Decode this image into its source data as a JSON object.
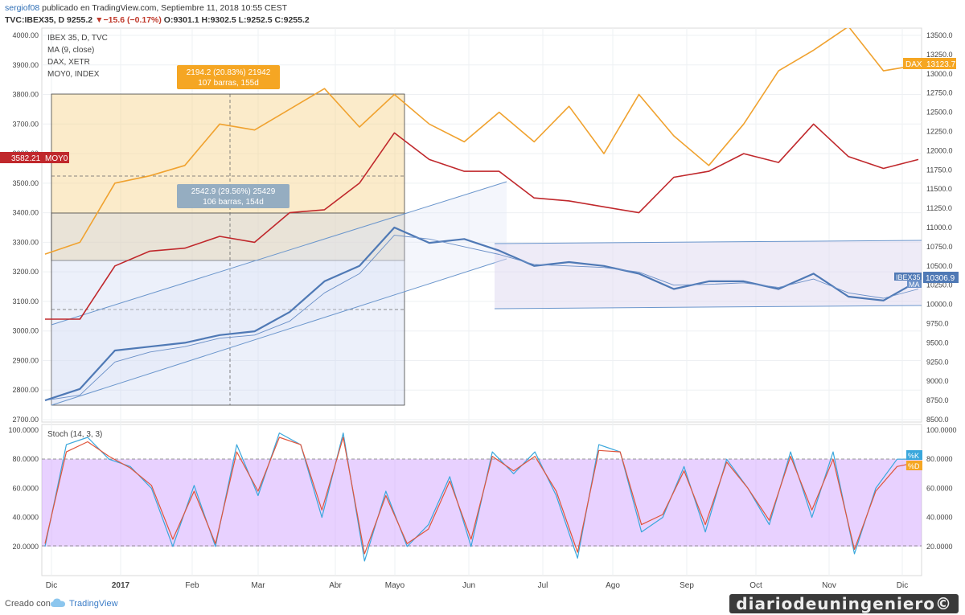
{
  "header": {
    "user": "sergiof08",
    "published": " publicado en TradingView.com, Septiembre 11, 2018 10:55 CEST",
    "symbol": "TVC:IBEX35, D",
    "last": "9255.2",
    "arrow": "▼",
    "change": "−15.6 (−0.17%)",
    "ohlc": "O:9301.1 H:9302.5 L:9252.5 C:9255.2"
  },
  "legend": [
    "IBEX 35, D, TVC",
    "MA (9, close)",
    "DAX, XETR",
    "MOY0, INDEX"
  ],
  "colors": {
    "ibex": "#4f79b5",
    "ma": "#6a8fc7",
    "dax": "#f0a22f",
    "moy": "#c0282c",
    "k": "#3aa7dc",
    "d": "#e0553c",
    "band": "#cc99ff"
  },
  "measure_boxes": [
    {
      "label1": "2194.2 (20.83%) 21942",
      "label2": "107 barras, 155d"
    },
    {
      "label1": "2542.9 (29.56%) 25429",
      "label2": "106 barras, 154d"
    }
  ],
  "price_badges": {
    "moy": "3582.21",
    "moy_tag": "MOY0",
    "dax_tag": "DAX",
    "dax": "13123.7",
    "ibex_tag": "IBEX35",
    "ma_tag": "MA",
    "ibex": "10306.9",
    "k_tag": "%K",
    "d_tag": "%D"
  },
  "stoch_label": "Stoch (14, 3, 3)",
  "chart_data": [
    {
      "type": "line",
      "x_labels": [
        "Dic",
        "2017",
        "Feb",
        "Mar",
        "Abr",
        "Mayo",
        "Jun",
        "Jul",
        "Ago",
        "Sep",
        "Oct",
        "Nov",
        "Dic"
      ],
      "left_axis": {
        "ticks": [
          "4000.00",
          "3900.00",
          "3800.00",
          "3700.00",
          "3600.00",
          "3500.00",
          "3400.00",
          "3300.00",
          "3200.00",
          "3100.00",
          "3000.00",
          "2900.00",
          "2800.00",
          "2700.00"
        ],
        "range": [
          2700,
          4000
        ]
      },
      "right_axis": {
        "ticks": [
          "13500.0",
          "13250.0",
          "13000.0",
          "12750.0",
          "12500.0",
          "12250.0",
          "12000.0",
          "11750.0",
          "11500.0",
          "11250.0",
          "11000.0",
          "10750.0",
          "10500.0",
          "10250.0",
          "10000.0",
          "9750.0",
          "9500.0",
          "9250.0",
          "9000.0",
          "8750.0",
          "8500.0"
        ],
        "range": [
          8500,
          13500
        ]
      },
      "series": [
        {
          "name": "DAX, XETR",
          "axis": "left",
          "values": [
            3260,
            3300,
            3500,
            3525,
            3560,
            3700,
            3680,
            3750,
            3820,
            3690,
            3800,
            3700,
            3640,
            3740,
            3640,
            3760,
            3600,
            3800,
            3660,
            3560,
            3700,
            3880,
            3950,
            4030,
            3880,
            3900
          ]
        },
        {
          "name": "MOY0, INDEX",
          "axis": "left",
          "values": [
            3040,
            3040,
            3220,
            3270,
            3280,
            3320,
            3300,
            3400,
            3410,
            3500,
            3670,
            3580,
            3540,
            3540,
            3450,
            3440,
            3420,
            3400,
            3520,
            3540,
            3600,
            3570,
            3700,
            3590,
            3550,
            3580
          ]
        },
        {
          "name": "IBEX 35, D, TVC",
          "axis": "right",
          "values": [
            8750,
            8900,
            9400,
            9450,
            9500,
            9600,
            9650,
            9900,
            10300,
            10500,
            11000,
            10800,
            10850,
            10700,
            10500,
            10550,
            10500,
            10400,
            10200,
            10300,
            10300,
            10200,
            10400,
            10100,
            10050,
            10307
          ]
        },
        {
          "name": "MA (9, close)",
          "axis": "right",
          "values": [
            8750,
            8820,
            9250,
            9380,
            9450,
            9560,
            9600,
            9780,
            10150,
            10400,
            10900,
            10850,
            10750,
            10650,
            10520,
            10500,
            10480,
            10420,
            10250,
            10260,
            10280,
            10220,
            10330,
            10150,
            10080,
            10200
          ]
        }
      ]
    },
    {
      "type": "line",
      "title": "Stoch (14, 3, 3)",
      "x_labels": [
        "Dic",
        "2017",
        "Feb",
        "Mar",
        "Abr",
        "Mayo",
        "Jun",
        "Jul",
        "Ago",
        "Sep",
        "Oct",
        "Nov",
        "Dic"
      ],
      "y_ticks": [
        "100.0000",
        "80.0000",
        "60.0000",
        "40.0000",
        "20.0000"
      ],
      "ylim": [
        0,
        100
      ],
      "band": [
        20,
        80
      ],
      "series": [
        {
          "name": "%K",
          "values": [
            20,
            90,
            95,
            80,
            75,
            60,
            20,
            62,
            20,
            90,
            55,
            98,
            90,
            40,
            98,
            10,
            58,
            20,
            35,
            68,
            20,
            85,
            70,
            85,
            55,
            12,
            90,
            85,
            30,
            40,
            75,
            30,
            80,
            60,
            35,
            85,
            40,
            85,
            15,
            60,
            80,
            80
          ]
        },
        {
          "name": "%D",
          "values": [
            22,
            85,
            92,
            82,
            74,
            62,
            25,
            58,
            22,
            85,
            58,
            95,
            90,
            45,
            95,
            15,
            55,
            22,
            32,
            65,
            25,
            82,
            72,
            82,
            58,
            16,
            86,
            85,
            35,
            42,
            72,
            35,
            78,
            60,
            38,
            82,
            45,
            80,
            18,
            58,
            75,
            78
          ]
        }
      ]
    }
  ]
}
